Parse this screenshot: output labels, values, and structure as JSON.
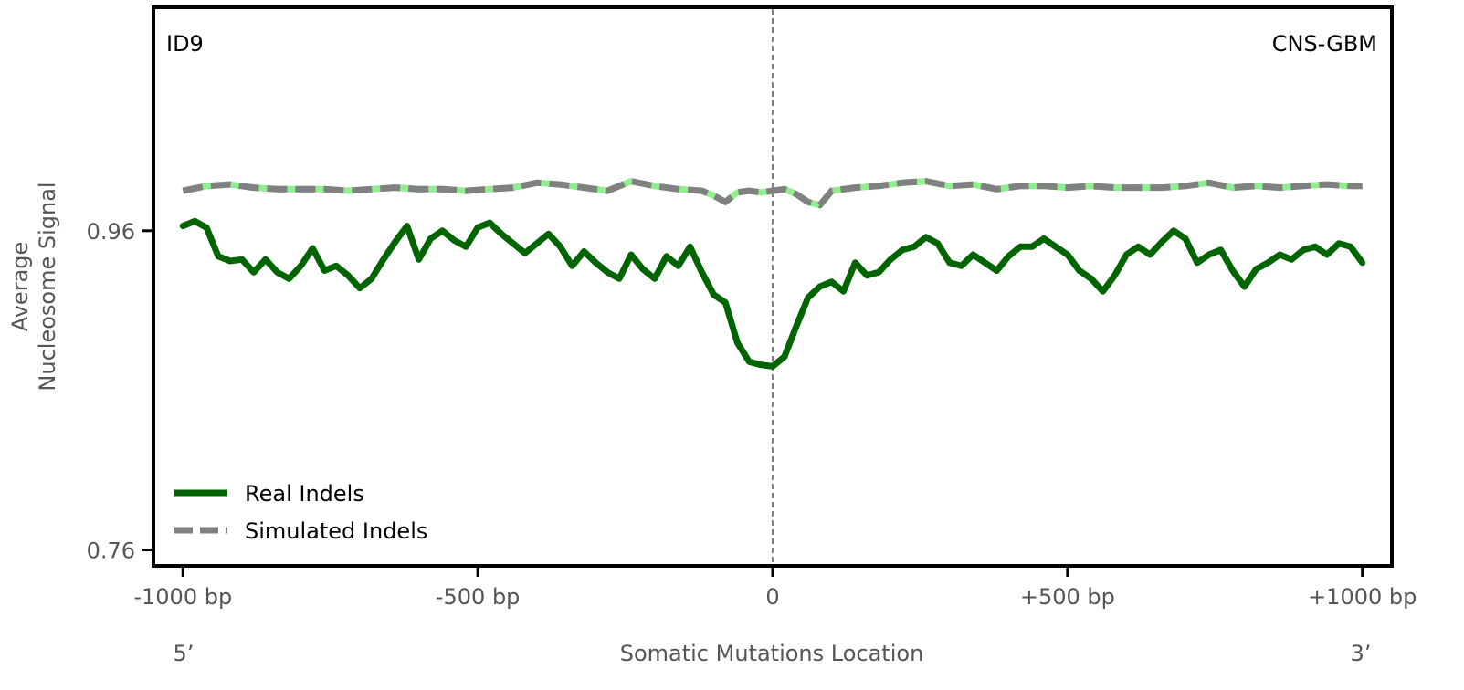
{
  "chart_data": {
    "type": "line",
    "signature_label": "ID9",
    "cancer_type_label": "CNS-GBM",
    "xlabel": "Somatic Mutations Location",
    "ylabel_lines": [
      "Average",
      "Nucleosome Signal"
    ],
    "five_prime_label": "5’",
    "three_prime_label": "3’",
    "x_ticks": [
      {
        "value": -1000,
        "label": "-1000 bp"
      },
      {
        "value": -500,
        "label": "-500 bp"
      },
      {
        "value": 0,
        "label": "0"
      },
      {
        "value": 500,
        "label": "+500 bp"
      },
      {
        "value": 1000,
        "label": "+1000 bp"
      }
    ],
    "y_ticks": [
      {
        "value": 0.76,
        "label": "0.76"
      },
      {
        "value": 0.96,
        "label": "0.96"
      }
    ],
    "xlim": [
      -1050,
      1050
    ],
    "ylim": [
      0.75,
      1.1
    ],
    "reference_line_x": 0,
    "legend": {
      "placement": "lower-left",
      "entries": [
        {
          "label": "Real Indels",
          "style": "solid",
          "color": "#006400"
        },
        {
          "label": "Simulated Indels",
          "style": "dashed",
          "color": "#808080"
        }
      ]
    },
    "series": [
      {
        "name": "Real Indels",
        "color": "#006400",
        "style": "solid",
        "points": [
          [
            -1000,
            0.963
          ],
          [
            -980,
            0.966
          ],
          [
            -960,
            0.962
          ],
          [
            -940,
            0.944
          ],
          [
            -920,
            0.941
          ],
          [
            -900,
            0.942
          ],
          [
            -880,
            0.934
          ],
          [
            -860,
            0.942
          ],
          [
            -840,
            0.934
          ],
          [
            -820,
            0.93
          ],
          [
            -800,
            0.938
          ],
          [
            -780,
            0.949
          ],
          [
            -760,
            0.935
          ],
          [
            -740,
            0.938
          ],
          [
            -720,
            0.932
          ],
          [
            -700,
            0.924
          ],
          [
            -680,
            0.93
          ],
          [
            -660,
            0.942
          ],
          [
            -640,
            0.953
          ],
          [
            -620,
            0.963
          ],
          [
            -600,
            0.942
          ],
          [
            -580,
            0.955
          ],
          [
            -560,
            0.96
          ],
          [
            -540,
            0.954
          ],
          [
            -520,
            0.95
          ],
          [
            -500,
            0.962
          ],
          [
            -480,
            0.965
          ],
          [
            -460,
            0.958
          ],
          [
            -440,
            0.952
          ],
          [
            -420,
            0.946
          ],
          [
            -400,
            0.952
          ],
          [
            -380,
            0.958
          ],
          [
            -360,
            0.95
          ],
          [
            -340,
            0.938
          ],
          [
            -320,
            0.947
          ],
          [
            -300,
            0.94
          ],
          [
            -280,
            0.934
          ],
          [
            -260,
            0.93
          ],
          [
            -240,
            0.945
          ],
          [
            -220,
            0.936
          ],
          [
            -200,
            0.93
          ],
          [
            -180,
            0.944
          ],
          [
            -160,
            0.938
          ],
          [
            -140,
            0.95
          ],
          [
            -120,
            0.934
          ],
          [
            -100,
            0.92
          ],
          [
            -80,
            0.915
          ],
          [
            -60,
            0.89
          ],
          [
            -40,
            0.878
          ],
          [
            -20,
            0.876
          ],
          [
            0,
            0.875
          ],
          [
            20,
            0.881
          ],
          [
            40,
            0.9
          ],
          [
            60,
            0.918
          ],
          [
            80,
            0.925
          ],
          [
            100,
            0.928
          ],
          [
            120,
            0.922
          ],
          [
            140,
            0.94
          ],
          [
            160,
            0.932
          ],
          [
            180,
            0.934
          ],
          [
            200,
            0.942
          ],
          [
            220,
            0.948
          ],
          [
            240,
            0.95
          ],
          [
            260,
            0.956
          ],
          [
            280,
            0.952
          ],
          [
            300,
            0.94
          ],
          [
            320,
            0.938
          ],
          [
            340,
            0.945
          ],
          [
            360,
            0.94
          ],
          [
            380,
            0.935
          ],
          [
            400,
            0.944
          ],
          [
            420,
            0.95
          ],
          [
            440,
            0.95
          ],
          [
            460,
            0.955
          ],
          [
            480,
            0.95
          ],
          [
            500,
            0.945
          ],
          [
            520,
            0.935
          ],
          [
            540,
            0.93
          ],
          [
            560,
            0.922
          ],
          [
            580,
            0.932
          ],
          [
            600,
            0.945
          ],
          [
            620,
            0.95
          ],
          [
            640,
            0.945
          ],
          [
            660,
            0.953
          ],
          [
            680,
            0.96
          ],
          [
            700,
            0.955
          ],
          [
            720,
            0.94
          ],
          [
            740,
            0.945
          ],
          [
            760,
            0.948
          ],
          [
            780,
            0.935
          ],
          [
            800,
            0.925
          ],
          [
            820,
            0.936
          ],
          [
            840,
            0.94
          ],
          [
            860,
            0.945
          ],
          [
            880,
            0.942
          ],
          [
            900,
            0.948
          ],
          [
            920,
            0.95
          ],
          [
            940,
            0.945
          ],
          [
            960,
            0.952
          ],
          [
            980,
            0.95
          ],
          [
            1000,
            0.94
          ]
        ]
      },
      {
        "name": "Simulated Indels",
        "color": "#808080",
        "style": "dashed",
        "highlight_color": "#90ee90",
        "points": [
          [
            -1000,
            0.985
          ],
          [
            -960,
            0.988
          ],
          [
            -920,
            0.989
          ],
          [
            -880,
            0.987
          ],
          [
            -840,
            0.986
          ],
          [
            -800,
            0.986
          ],
          [
            -760,
            0.986
          ],
          [
            -720,
            0.985
          ],
          [
            -680,
            0.986
          ],
          [
            -640,
            0.987
          ],
          [
            -600,
            0.986
          ],
          [
            -560,
            0.986
          ],
          [
            -520,
            0.985
          ],
          [
            -480,
            0.986
          ],
          [
            -440,
            0.987
          ],
          [
            -400,
            0.99
          ],
          [
            -360,
            0.989
          ],
          [
            -320,
            0.987
          ],
          [
            -280,
            0.985
          ],
          [
            -240,
            0.991
          ],
          [
            -200,
            0.988
          ],
          [
            -160,
            0.986
          ],
          [
            -120,
            0.985
          ],
          [
            -100,
            0.982
          ],
          [
            -80,
            0.978
          ],
          [
            -60,
            0.984
          ],
          [
            -40,
            0.985
          ],
          [
            -20,
            0.984
          ],
          [
            0,
            0.985
          ],
          [
            20,
            0.986
          ],
          [
            40,
            0.983
          ],
          [
            60,
            0.978
          ],
          [
            80,
            0.976
          ],
          [
            100,
            0.985
          ],
          [
            140,
            0.987
          ],
          [
            180,
            0.988
          ],
          [
            220,
            0.99
          ],
          [
            260,
            0.991
          ],
          [
            300,
            0.988
          ],
          [
            340,
            0.989
          ],
          [
            380,
            0.986
          ],
          [
            420,
            0.988
          ],
          [
            460,
            0.988
          ],
          [
            500,
            0.987
          ],
          [
            540,
            0.988
          ],
          [
            580,
            0.987
          ],
          [
            620,
            0.987
          ],
          [
            660,
            0.987
          ],
          [
            700,
            0.988
          ],
          [
            740,
            0.99
          ],
          [
            780,
            0.987
          ],
          [
            820,
            0.988
          ],
          [
            860,
            0.987
          ],
          [
            900,
            0.988
          ],
          [
            940,
            0.989
          ],
          [
            980,
            0.988
          ],
          [
            1000,
            0.988
          ]
        ]
      }
    ]
  }
}
